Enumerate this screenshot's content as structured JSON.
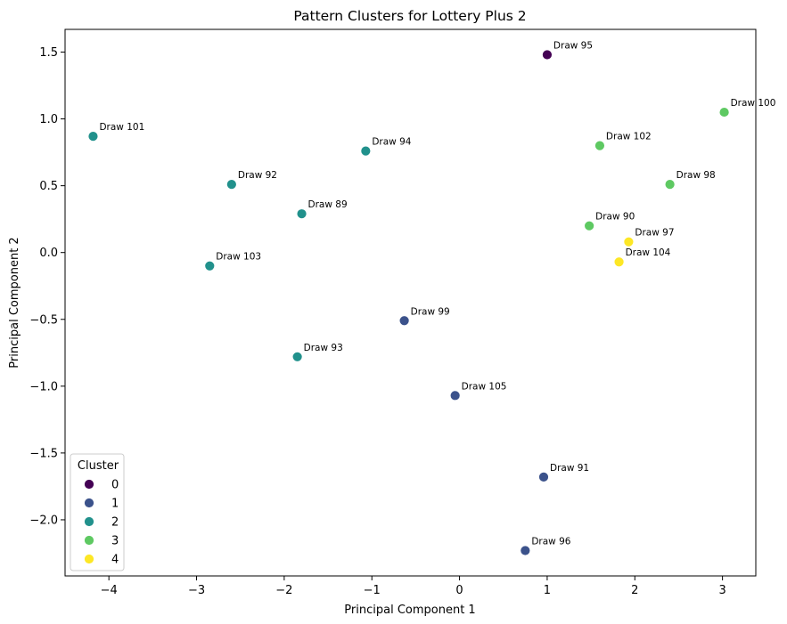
{
  "chart_data": {
    "type": "scatter",
    "title": "Pattern Clusters for Lottery Plus 2",
    "xlabel": "Principal Component 1",
    "ylabel": "Principal Component 2",
    "xlim": [
      -4.5,
      3.38
    ],
    "ylim": [
      -2.42,
      1.67
    ],
    "xticks": [
      -4,
      -3,
      -2,
      -1,
      0,
      1,
      2,
      3
    ],
    "yticks": [
      -2.0,
      -1.5,
      -1.0,
      -0.5,
      0.0,
      0.5,
      1.0,
      1.5
    ],
    "xtick_labels": [
      "−4",
      "−3",
      "−2",
      "−1",
      "0",
      "1",
      "2",
      "3"
    ],
    "ytick_labels": [
      "−2.0",
      "−1.5",
      "−1.0",
      "−0.5",
      "0.0",
      "0.5",
      "1.0",
      "1.5"
    ],
    "grid": false,
    "legend": {
      "title": "Cluster",
      "placement": "lower-left",
      "entries": [
        {
          "label": "0",
          "color": "#440154"
        },
        {
          "label": "1",
          "color": "#3b528b"
        },
        {
          "label": "2",
          "color": "#21918c"
        },
        {
          "label": "3",
          "color": "#5ec962"
        },
        {
          "label": "4",
          "color": "#fde725"
        }
      ]
    },
    "points": [
      {
        "label": "Draw 95",
        "x": 1.0,
        "y": 1.48,
        "cluster": 0
      },
      {
        "label": "Draw 100",
        "x": 3.02,
        "y": 1.05,
        "cluster": 3
      },
      {
        "label": "Draw 101",
        "x": -4.18,
        "y": 0.87,
        "cluster": 2
      },
      {
        "label": "Draw 94",
        "x": -1.07,
        "y": 0.76,
        "cluster": 2
      },
      {
        "label": "Draw 102",
        "x": 1.6,
        "y": 0.8,
        "cluster": 3
      },
      {
        "label": "Draw 92",
        "x": -2.6,
        "y": 0.51,
        "cluster": 2
      },
      {
        "label": "Draw 98",
        "x": 2.4,
        "y": 0.51,
        "cluster": 3
      },
      {
        "label": "Draw 89",
        "x": -1.8,
        "y": 0.29,
        "cluster": 2
      },
      {
        "label": "Draw 90",
        "x": 1.48,
        "y": 0.2,
        "cluster": 3
      },
      {
        "label": "Draw 97",
        "x": 1.93,
        "y": 0.08,
        "cluster": 4
      },
      {
        "label": "Draw 104",
        "x": 1.82,
        "y": -0.07,
        "cluster": 4
      },
      {
        "label": "Draw 103",
        "x": -2.85,
        "y": -0.1,
        "cluster": 2
      },
      {
        "label": "Draw 99",
        "x": -0.63,
        "y": -0.51,
        "cluster": 1
      },
      {
        "label": "Draw 93",
        "x": -1.85,
        "y": -0.78,
        "cluster": 2
      },
      {
        "label": "Draw 105",
        "x": -0.05,
        "y": -1.07,
        "cluster": 1
      },
      {
        "label": "Draw 91",
        "x": 0.96,
        "y": -1.68,
        "cluster": 1
      },
      {
        "label": "Draw 96",
        "x": 0.75,
        "y": -2.23,
        "cluster": 1
      }
    ]
  }
}
